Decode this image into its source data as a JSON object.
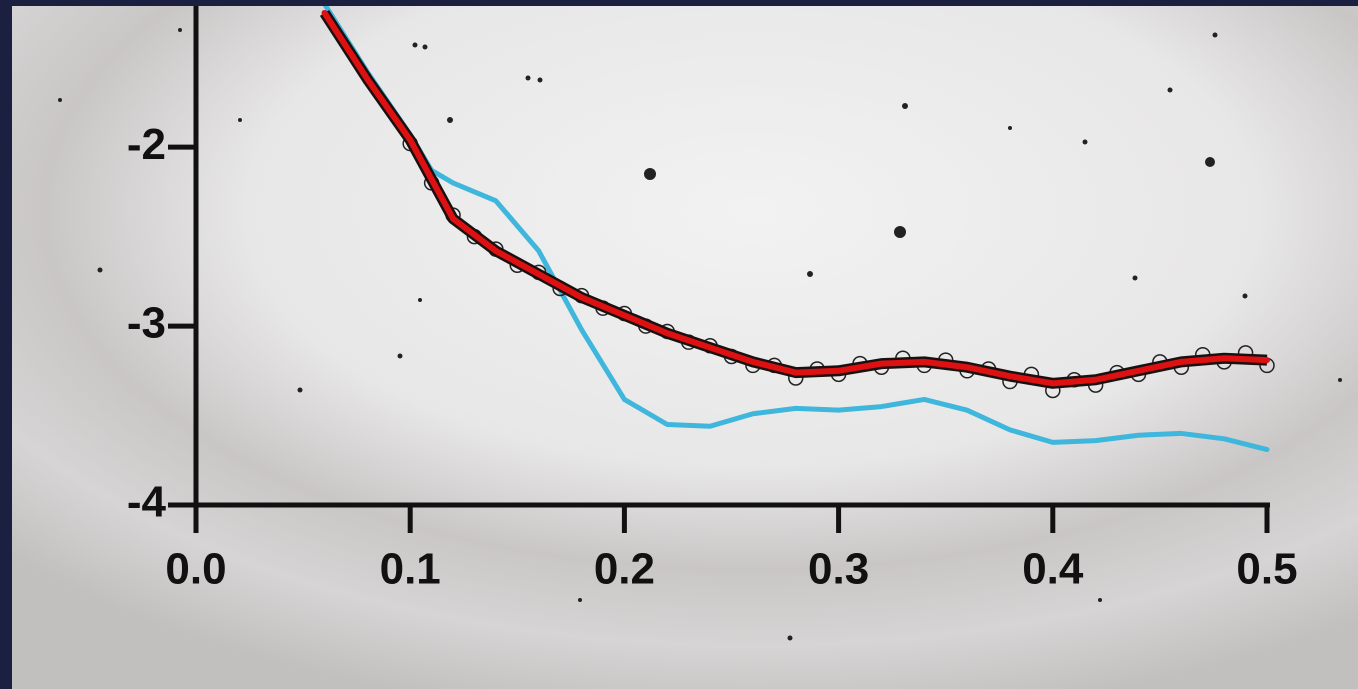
{
  "chart_data": {
    "type": "line",
    "xlim": [
      0,
      0.5
    ],
    "ylim": [
      -4,
      -1.2
    ],
    "xticks": [
      {
        "value": 0,
        "label": "0.0"
      },
      0.1,
      0.2,
      0.3,
      0.4,
      0.5
    ],
    "yticks": [
      -4,
      -3,
      -2
    ],
    "series": [
      {
        "style": "line",
        "color": "#3fb6dc",
        "x": [
          0.06,
          0.08,
          0.1,
          0.11,
          0.12,
          0.14,
          0.16,
          0.18,
          0.2,
          0.22,
          0.24,
          0.26,
          0.28,
          0.3,
          0.32,
          0.34,
          0.36,
          0.38,
          0.4,
          0.42,
          0.44,
          0.46,
          0.48,
          0.5
        ],
        "values": [
          -1.2,
          -1.58,
          -1.93,
          -2.13,
          -2.2,
          -2.3,
          -2.58,
          -3.02,
          -3.41,
          -3.55,
          -3.56,
          -3.49,
          -3.46,
          -3.47,
          -3.45,
          -3.41,
          -3.47,
          -3.58,
          -3.65,
          -3.64,
          -3.61,
          -3.6,
          -3.63,
          -3.69
        ]
      },
      {
        "style": "scatter",
        "color": "#222222",
        "x": [
          0.1,
          0.11,
          0.12,
          0.13,
          0.14,
          0.15,
          0.16,
          0.17,
          0.18,
          0.19,
          0.2,
          0.21,
          0.22,
          0.23,
          0.24,
          0.25,
          0.26,
          0.27,
          0.28,
          0.29,
          0.3,
          0.31,
          0.32,
          0.33,
          0.34,
          0.35,
          0.36,
          0.37,
          0.38,
          0.39,
          0.4,
          0.41,
          0.42,
          0.43,
          0.44,
          0.45,
          0.46,
          0.47,
          0.48,
          0.49,
          0.5
        ],
        "values": [
          -1.98,
          -2.2,
          -2.38,
          -2.5,
          -2.57,
          -2.66,
          -2.7,
          -2.79,
          -2.83,
          -2.9,
          -2.93,
          -3.0,
          -3.03,
          -3.09,
          -3.11,
          -3.17,
          -3.22,
          -3.22,
          -3.29,
          -3.24,
          -3.27,
          -3.21,
          -3.23,
          -3.18,
          -3.22,
          -3.19,
          -3.25,
          -3.24,
          -3.31,
          -3.27,
          -3.36,
          -3.3,
          -3.33,
          -3.26,
          -3.27,
          -3.2,
          -3.23,
          -3.16,
          -3.2,
          -3.15,
          -3.22
        ]
      },
      {
        "style": "line",
        "color": "#dd1111",
        "x": [
          0.06,
          0.08,
          0.1,
          0.12,
          0.14,
          0.16,
          0.18,
          0.2,
          0.22,
          0.24,
          0.26,
          0.28,
          0.3,
          0.32,
          0.34,
          0.36,
          0.38,
          0.4,
          0.42,
          0.44,
          0.46,
          0.48,
          0.5
        ],
        "values": [
          -1.25,
          -1.62,
          -1.96,
          -2.4,
          -2.58,
          -2.71,
          -2.84,
          -2.94,
          -3.04,
          -3.12,
          -3.2,
          -3.26,
          -3.25,
          -3.21,
          -3.2,
          -3.23,
          -3.28,
          -3.32,
          -3.3,
          -3.25,
          -3.2,
          -3.18,
          -3.19
        ]
      }
    ]
  }
}
